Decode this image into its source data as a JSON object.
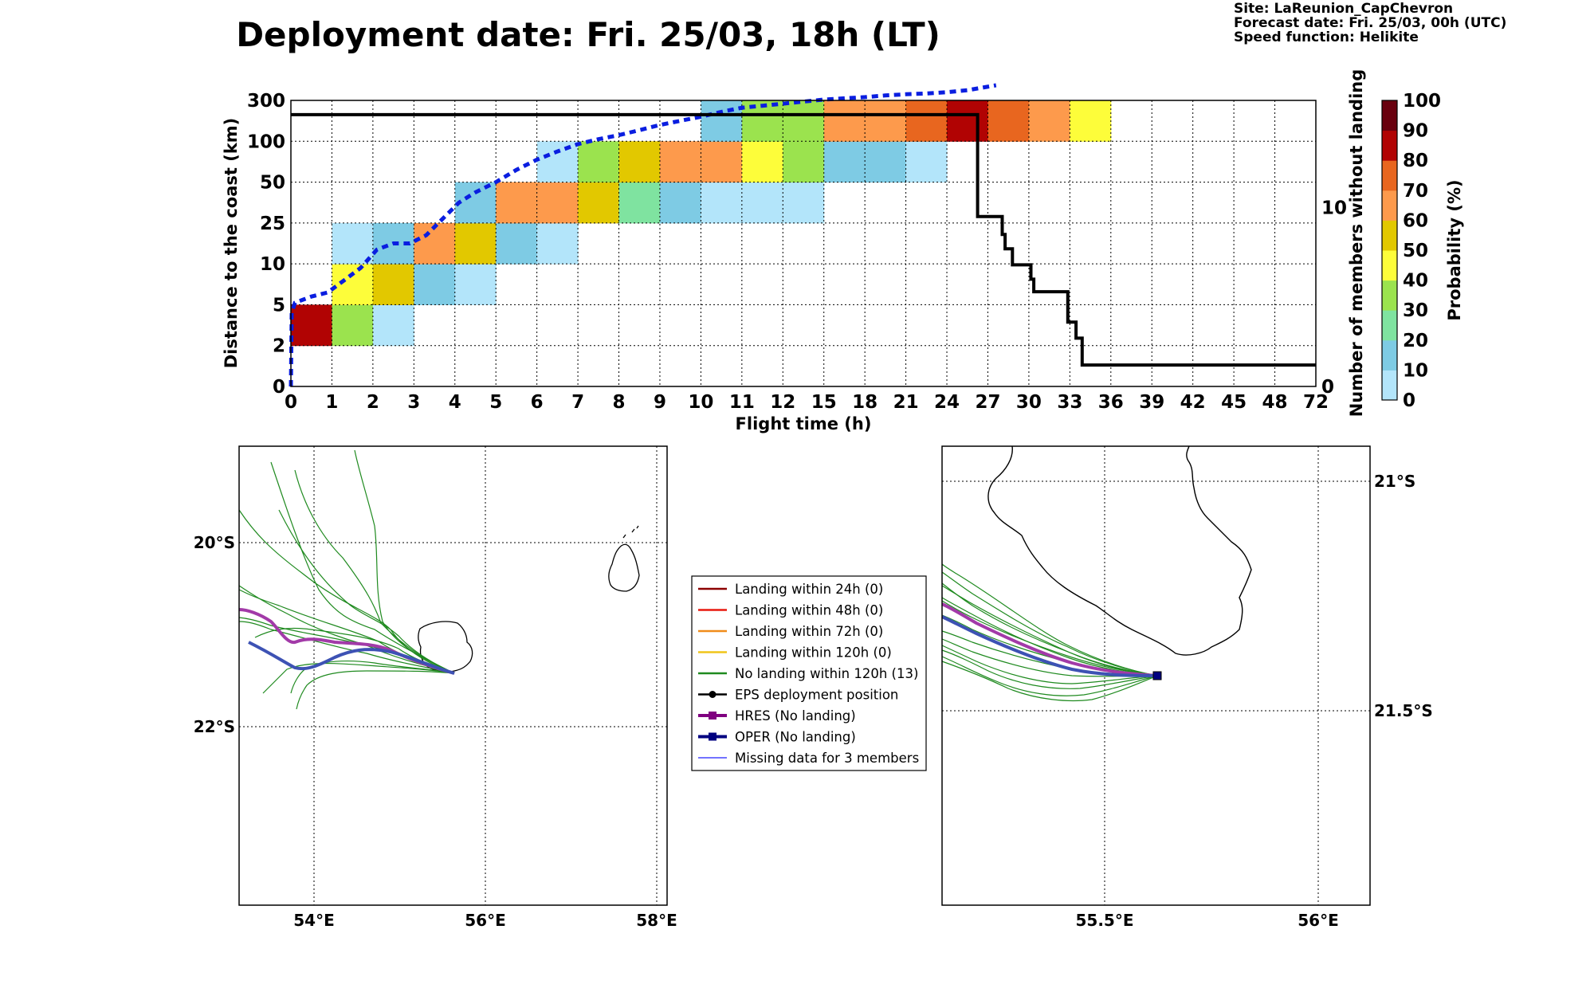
{
  "header": {
    "title": "Deployment date: Fri. 25/03, 18h (LT)",
    "site": "Site: LaReunion_CapChevron",
    "forecast": "Forecast date: Fri. 25/03, 00h (UTC)",
    "speed": "Speed function: Helikite"
  },
  "chart_data": [
    {
      "type": "heatmap",
      "xlabel": "Flight time (h)",
      "ylabel": "Distance to the coast (km)",
      "y2label": "Number of members without landing",
      "x_ticks": [
        "0",
        "1",
        "2",
        "3",
        "4",
        "5",
        "6",
        "7",
        "8",
        "9",
        "10",
        "11",
        "12",
        "15",
        "18",
        "21",
        "24",
        "27",
        "30",
        "33",
        "36",
        "39",
        "42",
        "45",
        "48",
        "72"
      ],
      "y_ticks": [
        "0",
        "2",
        "5",
        "10",
        "25",
        "50",
        "100",
        "300"
      ],
      "y2_ticks": [
        {
          "label": "0",
          "value": 0
        },
        {
          "label": "10",
          "value": 10
        }
      ],
      "y2lim": [
        0,
        16
      ],
      "colorbar": {
        "label": "Probability (%)",
        "ticks": [
          "0",
          "10",
          "20",
          "30",
          "40",
          "50",
          "60",
          "70",
          "80",
          "90",
          "100"
        ],
        "colors": [
          "#b3e5fa",
          "#7ecbe4",
          "#7fe3a0",
          "#9be34e",
          "#fdfd3a",
          "#e2c800",
          "#fd9a4c",
          "#e8661f",
          "#b10303",
          "#69000e"
        ]
      },
      "cells_note": "[x_index, y_band_index, probability %]",
      "cells": [
        [
          0,
          1,
          85
        ],
        [
          1,
          1,
          35
        ],
        [
          2,
          1,
          5
        ],
        [
          1,
          2,
          45
        ],
        [
          2,
          2,
          55
        ],
        [
          3,
          2,
          15
        ],
        [
          4,
          2,
          5
        ],
        [
          1,
          3,
          5
        ],
        [
          2,
          3,
          15
        ],
        [
          3,
          3,
          65
        ],
        [
          4,
          3,
          55
        ],
        [
          5,
          3,
          15
        ],
        [
          6,
          3,
          5
        ],
        [
          4,
          4,
          15
        ],
        [
          5,
          4,
          65
        ],
        [
          6,
          4,
          65
        ],
        [
          7,
          4,
          55
        ],
        [
          8,
          4,
          25
        ],
        [
          9,
          4,
          15
        ],
        [
          10,
          4,
          5
        ],
        [
          11,
          4,
          5
        ],
        [
          12,
          4,
          5
        ],
        [
          6,
          5,
          5
        ],
        [
          7,
          5,
          35
        ],
        [
          8,
          5,
          55
        ],
        [
          9,
          5,
          65
        ],
        [
          10,
          5,
          65
        ],
        [
          11,
          5,
          45
        ],
        [
          12,
          5,
          35
        ],
        [
          13,
          5,
          15
        ],
        [
          14,
          5,
          15
        ],
        [
          15,
          5,
          5
        ],
        [
          10,
          6,
          15
        ],
        [
          11,
          6,
          35
        ],
        [
          12,
          6,
          35
        ],
        [
          13,
          6,
          65
        ],
        [
          14,
          6,
          65
        ],
        [
          15,
          6,
          75
        ],
        [
          16,
          6,
          85
        ],
        [
          17,
          6,
          75
        ],
        [
          18,
          6,
          65
        ],
        [
          19,
          6,
          45
        ]
      ],
      "median_line_note": "[x_index position, y_band position]",
      "median_line": [
        [
          0,
          0
        ],
        [
          0.02,
          1.8
        ],
        [
          0.1,
          2.05
        ],
        [
          0.5,
          2.2
        ],
        [
          0.9,
          2.3
        ],
        [
          1.3,
          2.6
        ],
        [
          1.7,
          2.9
        ],
        [
          2.1,
          3.35
        ],
        [
          2.5,
          3.5
        ],
        [
          2.9,
          3.5
        ],
        [
          3.3,
          3.7
        ],
        [
          3.7,
          4.1
        ],
        [
          4.1,
          4.5
        ],
        [
          4.5,
          4.75
        ],
        [
          5.0,
          5.0
        ],
        [
          5.5,
          5.3
        ],
        [
          6.0,
          5.55
        ],
        [
          6.5,
          5.75
        ],
        [
          7.0,
          5.93
        ],
        [
          7.5,
          6.05
        ],
        [
          8.0,
          6.15
        ],
        [
          8.5,
          6.27
        ],
        [
          9.0,
          6.4
        ],
        [
          9.5,
          6.5
        ],
        [
          10.0,
          6.6
        ],
        [
          10.5,
          6.72
        ],
        [
          11.0,
          6.82
        ],
        [
          11.5,
          6.87
        ],
        [
          12.0,
          6.92
        ],
        [
          12.5,
          6.97
        ],
        [
          13.0,
          7.02
        ],
        [
          13.5,
          7.05
        ],
        [
          14.0,
          7.08
        ],
        [
          14.5,
          7.12
        ],
        [
          15.0,
          7.15
        ],
        [
          15.5,
          7.17
        ],
        [
          16.0,
          7.2
        ],
        [
          16.5,
          7.25
        ],
        [
          17.2,
          7.37
        ]
      ],
      "members_line_note": "[x_index position, members count]",
      "members_line": [
        [
          0,
          15.2
        ],
        [
          16.75,
          15.2
        ],
        [
          16.75,
          9.5
        ],
        [
          17.35,
          9.5
        ],
        [
          17.35,
          8.5
        ],
        [
          17.42,
          8.5
        ],
        [
          17.42,
          7.7
        ],
        [
          17.6,
          7.7
        ],
        [
          17.6,
          6.8
        ],
        [
          18.05,
          6.8
        ],
        [
          18.05,
          6.0
        ],
        [
          18.12,
          6.0
        ],
        [
          18.12,
          5.3
        ],
        [
          18.95,
          5.3
        ],
        [
          18.95,
          3.6
        ],
        [
          19.15,
          3.6
        ],
        [
          19.15,
          2.7
        ],
        [
          19.3,
          2.7
        ],
        [
          19.3,
          1.2
        ],
        [
          25,
          1.2
        ]
      ]
    }
  ],
  "maps": {
    "left": {
      "lon_ticks": [
        "54°E",
        "56°E",
        "58°E"
      ],
      "lat_ticks": [
        "20°S",
        "22°S"
      ]
    },
    "right": {
      "lon_ticks": [
        "55.5°E",
        "56°E"
      ],
      "lat_ticks": [
        "21°S",
        "21.5°S"
      ]
    }
  },
  "legend": [
    {
      "label": "Landing within 24h (0)",
      "color": "#8b0000",
      "style": "line"
    },
    {
      "label": "Landing within 48h (0)",
      "color": "#e8190f",
      "style": "line"
    },
    {
      "label": "Landing within 72h (0)",
      "color": "#f08c1a",
      "style": "line"
    },
    {
      "label": "Landing within 120h (0)",
      "color": "#f0c51a",
      "style": "line"
    },
    {
      "label": "No landing within 120h (13)",
      "color": "#1f8a1f",
      "style": "line"
    },
    {
      "label": "EPS deployment position",
      "color": "#000000",
      "style": "dot"
    },
    {
      "label": "HRES (No landing)",
      "color": "#800080",
      "style": "square"
    },
    {
      "label": "OPER (No landing)",
      "color": "#000080",
      "style": "square"
    },
    {
      "label": "Missing data for 3 members",
      "color": "#4444ff",
      "style": "thin"
    }
  ]
}
